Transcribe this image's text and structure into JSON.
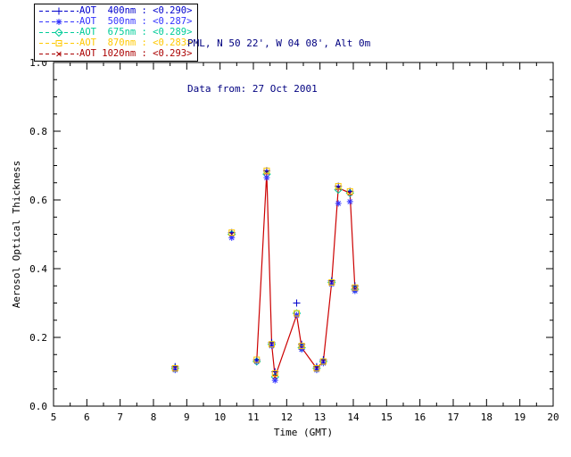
{
  "header": {
    "line1": "PML, N 50 22', W 04 08', Alt 0m",
    "line2": "Data from: 27 Oct 2001"
  },
  "legend": {
    "entries": [
      {
        "label": "AOT  400nm : <0.290>",
        "color": "#0000cc",
        "symbol": "plus"
      },
      {
        "label": "AOT  500nm : <0.287>",
        "color": "#3333ff",
        "symbol": "asterisk"
      },
      {
        "label": "AOT  675nm : <0.289>",
        "color": "#00cc99",
        "symbol": "diamond"
      },
      {
        "label": "AOT  870nm : <0.283>",
        "color": "#ffc800",
        "symbol": "square"
      },
      {
        "label": "AOT 1020nm : <0.293>",
        "color": "#aa0000",
        "symbol": "cross"
      }
    ]
  },
  "chart_data": {
    "type": "scatter",
    "title": "",
    "xlabel": "Time (GMT)",
    "ylabel": "Aerosol Optical Thickness",
    "xlim": [
      5,
      20
    ],
    "ylim": [
      0.0,
      1.0
    ],
    "xticks": [
      5,
      6,
      7,
      8,
      9,
      10,
      11,
      12,
      13,
      14,
      15,
      16,
      17,
      18,
      19,
      20
    ],
    "xtick_labels": [
      "5",
      "6",
      "7",
      "8",
      "9",
      "10",
      "11",
      "12",
      "13",
      "14",
      "15",
      "16",
      "17",
      "18",
      "19",
      "20"
    ],
    "yticks": [
      0.0,
      0.2,
      0.4,
      0.6,
      0.8,
      1.0
    ],
    "ytick_labels": [
      "0.0",
      "0.2",
      "0.4",
      "0.6",
      "0.8",
      "1.0"
    ],
    "x": [
      8.65,
      10.35,
      11.1,
      11.4,
      11.55,
      11.65,
      12.3,
      12.45,
      12.9,
      13.1,
      13.35,
      13.55,
      13.9,
      14.05
    ],
    "series": [
      {
        "name": "AOT 400nm",
        "color": "#0000cc",
        "symbol": "plus",
        "values": [
          0.115,
          0.505,
          0.135,
          0.685,
          0.185,
          0.1,
          0.3,
          0.18,
          0.115,
          0.135,
          0.365,
          0.64,
          0.625,
          0.35
        ]
      },
      {
        "name": "AOT 500nm",
        "color": "#3333ff",
        "symbol": "asterisk",
        "values": [
          0.105,
          0.49,
          0.13,
          0.665,
          0.175,
          0.075,
          0.265,
          0.165,
          0.105,
          0.125,
          0.355,
          0.59,
          0.595,
          0.335
        ]
      },
      {
        "name": "AOT 675nm",
        "color": "#00cc99",
        "symbol": "diamond",
        "values": [
          0.11,
          0.5,
          0.13,
          0.675,
          0.18,
          0.085,
          0.27,
          0.17,
          0.11,
          0.13,
          0.36,
          0.63,
          0.62,
          0.34
        ]
      },
      {
        "name": "AOT 870nm",
        "color": "#ffc800",
        "symbol": "square",
        "values": [
          0.11,
          0.505,
          0.135,
          0.685,
          0.18,
          0.095,
          0.27,
          0.175,
          0.11,
          0.13,
          0.36,
          0.64,
          0.625,
          0.345
        ]
      },
      {
        "name": "AOT 1020nm",
        "color": "#aa0000",
        "symbol": "cross",
        "line": true,
        "values": [
          0.11,
          0.5,
          0.13,
          0.68,
          0.18,
          0.085,
          0.265,
          0.17,
          0.11,
          0.13,
          0.36,
          0.635,
          0.62,
          0.34
        ]
      }
    ],
    "line_color": "#cc0000",
    "line_segments": [
      [
        0
      ],
      [
        1
      ],
      [
        2,
        3,
        4,
        5,
        6,
        7,
        8,
        9,
        10,
        11,
        12,
        13
      ]
    ],
    "legend_position": "top-left",
    "grid": false
  }
}
